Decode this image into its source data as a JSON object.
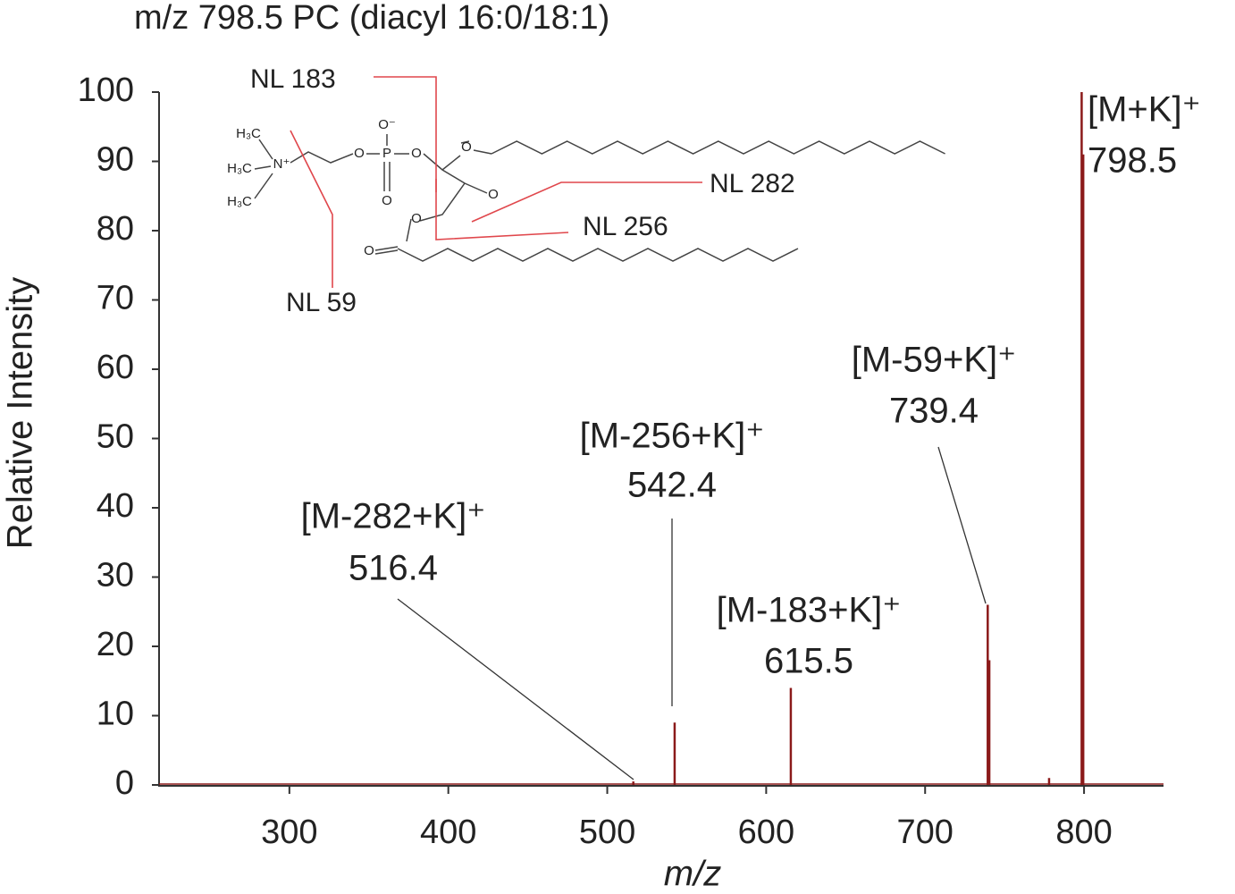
{
  "chart_data": {
    "type": "stick",
    "title": "m/z 798.5 PC (diacyl 16:0/18:1)",
    "x_label": "m/z",
    "y_label": "Relative Intensity",
    "color": "#8b1a1a",
    "x": [
      516.4,
      542.4,
      615.5,
      739.4,
      740.4,
      778.0,
      798.5,
      799.5
    ],
    "values": [
      0.5,
      9,
      14,
      26,
      18,
      1,
      100,
      91
    ],
    "xlim": [
      218,
      850
    ],
    "ylim": [
      0,
      100
    ],
    "xticks": [
      300,
      400,
      500,
      600,
      700,
      800
    ],
    "yticks": [
      0,
      10,
      20,
      30,
      40,
      50,
      60,
      70,
      80,
      90,
      100
    ],
    "annotations": [
      {
        "text": "[M-282+K]⁺",
        "value": 516.4
      },
      {
        "text": "[M-256+K]⁺",
        "value": 542.4
      },
      {
        "text": "[M-183+K]⁺",
        "value": 615.5
      },
      {
        "text": "[M-59+K]⁺",
        "value": 739.4
      },
      {
        "text": "[M+K]⁺",
        "value": 798.5
      }
    ],
    "neutral_losses": [
      "NL 183",
      "NL 282",
      "NL 256",
      "NL 59"
    ],
    "structure_atoms": [
      "H₃C",
      "H₃C",
      "H₃C",
      "N⁺",
      "O",
      "P",
      "O⁻",
      "O",
      "O",
      "O",
      "O",
      "O",
      "O"
    ]
  }
}
